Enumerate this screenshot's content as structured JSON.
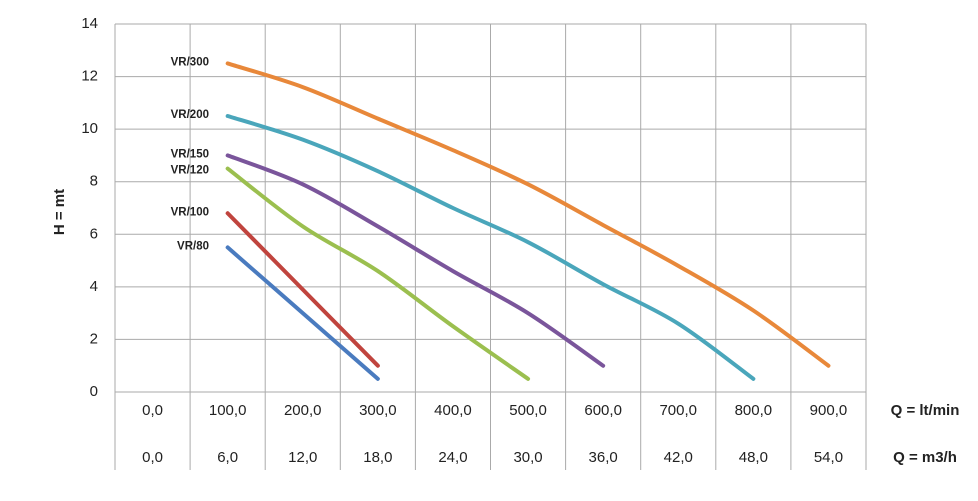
{
  "chart_data": {
    "type": "line",
    "y_label": "H = mt",
    "x_label": "Q = lt/min",
    "xlim": [
      -50,
      950
    ],
    "xticks": [
      {
        "value": 0,
        "label": "0,0"
      },
      {
        "value": 100,
        "label": "100,0"
      },
      {
        "value": 200,
        "label": "200,0"
      },
      {
        "value": 300,
        "label": "300,0"
      },
      {
        "value": 400,
        "label": "400,0"
      },
      {
        "value": 500,
        "label": "500,0"
      },
      {
        "value": 600,
        "label": "600,0"
      },
      {
        "value": 700,
        "label": "700,0"
      },
      {
        "value": 800,
        "label": "800,0"
      },
      {
        "value": 900,
        "label": "900,0"
      }
    ],
    "x2_label": "Q = m3/h",
    "x2ticks": [
      {
        "value": 0,
        "label": "0,0"
      },
      {
        "value": 6,
        "label": "6,0"
      },
      {
        "value": 12,
        "label": "12,0"
      },
      {
        "value": 18,
        "label": "18,0"
      },
      {
        "value": 24,
        "label": "24,0"
      },
      {
        "value": 30,
        "label": "30,0"
      },
      {
        "value": 36,
        "label": "36,0"
      },
      {
        "value": 42,
        "label": "42,0"
      },
      {
        "value": 48,
        "label": "48,0"
      },
      {
        "value": 54,
        "label": "54,0"
      }
    ],
    "ylim": [
      0,
      14
    ],
    "yticks": [
      0,
      2,
      4,
      6,
      8,
      10,
      12,
      14
    ],
    "grid": true,
    "series": [
      {
        "name": "VR/300",
        "color": "#e8883a",
        "x": [
          100,
          200,
          300,
          400,
          500,
          600,
          700,
          800,
          900
        ],
        "values": [
          12.5,
          11.6,
          10.4,
          9.2,
          7.9,
          6.35,
          4.8,
          3.1,
          1.0
        ]
      },
      {
        "name": "VR/200",
        "color": "#4aa6bb",
        "x": [
          100,
          200,
          300,
          400,
          500,
          600,
          700,
          800
        ],
        "values": [
          10.5,
          9.6,
          8.4,
          7.0,
          5.7,
          4.1,
          2.6,
          0.5
        ]
      },
      {
        "name": "VR/150",
        "color": "#7a559b",
        "x": [
          100,
          200,
          300,
          400,
          500,
          600
        ],
        "values": [
          9.0,
          7.9,
          6.3,
          4.6,
          3.0,
          1.0
        ]
      },
      {
        "name": "VR/120",
        "color": "#9bbf4f",
        "x": [
          100,
          200,
          300,
          400,
          500
        ],
        "values": [
          8.5,
          6.3,
          4.6,
          2.5,
          0.5
        ]
      },
      {
        "name": "VR/100",
        "color": "#c0443e",
        "x": [
          100,
          200,
          300
        ],
        "values": [
          6.8,
          3.9,
          1.0
        ]
      },
      {
        "name": "VR/80",
        "color": "#4a7bbf",
        "x": [
          100,
          200,
          300
        ],
        "values": [
          5.5,
          3.0,
          0.5
        ]
      }
    ]
  }
}
